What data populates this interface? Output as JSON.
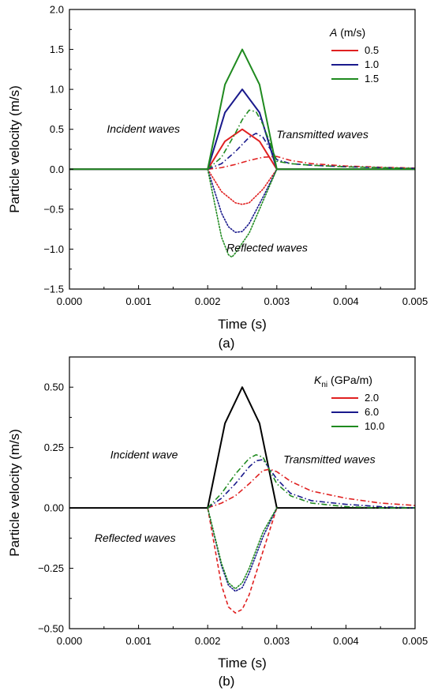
{
  "chart_data": [
    {
      "type": "line",
      "panel_label": "(a)",
      "xlabel": "Time (s)",
      "ylabel": "Particle velocity (m/s)",
      "xlim": [
        0.0,
        0.005
      ],
      "ylim": [
        -1.5,
        2.0
      ],
      "xticks": [
        0.0,
        0.001,
        0.002,
        0.003,
        0.004,
        0.005
      ],
      "xtick_labels": [
        "0.000",
        "0.001",
        "0.002",
        "0.003",
        "0.004",
        "0.005"
      ],
      "yticks": [
        -1.5,
        -1.0,
        -0.5,
        0.0,
        0.5,
        1.0,
        1.5,
        2.0
      ],
      "ytick_labels": [
        "−1.5",
        "−1.0",
        "−0.5",
        "0.0",
        "0.5",
        "1.0",
        "1.5",
        "2.0"
      ],
      "legend": {
        "placement": "top-right",
        "title_symbol": "A",
        "title_unit": " (m/s)",
        "entries": [
          {
            "label": "0.5",
            "color": "#e02020"
          },
          {
            "label": "1.0",
            "color": "#1a1a8c"
          },
          {
            "label": "1.5",
            "color": "#1f8a1f"
          }
        ]
      },
      "annotations": [
        {
          "text": "Incident waves",
          "x": 0.00107,
          "y": 0.46
        },
        {
          "text": "Transmitted waves",
          "x": 0.00366,
          "y": 0.39
        },
        {
          "text": "Reflected waves",
          "x": 0.00286,
          "y": -1.03
        }
      ],
      "series": [
        {
          "kind": "incident",
          "style": "solid",
          "color": "#e02020",
          "x": [
            0.0,
            0.002,
            0.00225,
            0.0025,
            0.00275,
            0.003,
            0.005
          ],
          "y": [
            0.0,
            0.0,
            0.35,
            0.5,
            0.35,
            0.0,
            0.0
          ]
        },
        {
          "kind": "incident",
          "style": "solid",
          "color": "#1a1a8c",
          "x": [
            0.0,
            0.002,
            0.00225,
            0.0025,
            0.00275,
            0.003,
            0.005
          ],
          "y": [
            0.0,
            0.0,
            0.71,
            1.0,
            0.71,
            0.0,
            0.0
          ]
        },
        {
          "kind": "incident",
          "style": "solid",
          "color": "#1f8a1f",
          "x": [
            0.0,
            0.002,
            0.00225,
            0.0025,
            0.00275,
            0.003,
            0.005
          ],
          "y": [
            0.0,
            0.0,
            1.06,
            1.5,
            1.06,
            0.0,
            0.0
          ]
        },
        {
          "kind": "transmitted",
          "style": "dashdot",
          "color": "#e02020",
          "x": [
            0.002,
            0.0022,
            0.0024,
            0.0026,
            0.0028,
            0.003,
            0.0032,
            0.0035,
            0.004,
            0.0045,
            0.005
          ],
          "y": [
            0.0,
            0.02,
            0.06,
            0.11,
            0.15,
            0.16,
            0.11,
            0.07,
            0.04,
            0.025,
            0.015
          ]
        },
        {
          "kind": "transmitted",
          "style": "dashdot",
          "color": "#1a1a8c",
          "x": [
            0.002,
            0.0022,
            0.0024,
            0.0026,
            0.0027,
            0.0028,
            0.003,
            0.0032,
            0.0035,
            0.004,
            0.0045,
            0.005
          ],
          "y": [
            0.0,
            0.07,
            0.22,
            0.4,
            0.45,
            0.4,
            0.12,
            0.07,
            0.05,
            0.03,
            0.02,
            0.01
          ]
        },
        {
          "kind": "transmitted",
          "style": "dashdot",
          "color": "#1f8a1f",
          "x": [
            0.002,
            0.0022,
            0.0024,
            0.0025,
            0.0026,
            0.0027,
            0.0028,
            0.003,
            0.0032,
            0.0035,
            0.004,
            0.0045,
            0.005
          ],
          "y": [
            0.0,
            0.15,
            0.45,
            0.62,
            0.74,
            0.72,
            0.56,
            0.1,
            0.07,
            0.05,
            0.03,
            0.02,
            0.01
          ]
        },
        {
          "kind": "reflected",
          "style": "dotted",
          "color": "#e02020",
          "x": [
            0.002,
            0.0022,
            0.0024,
            0.0025,
            0.0026,
            0.0028,
            0.003
          ],
          "y": [
            0.0,
            -0.28,
            -0.42,
            -0.44,
            -0.42,
            -0.25,
            0.0
          ]
        },
        {
          "kind": "reflected",
          "style": "dotted",
          "color": "#1a1a8c",
          "x": [
            0.002,
            0.0022,
            0.0023,
            0.0024,
            0.0025,
            0.0026,
            0.0028,
            0.003
          ],
          "y": [
            0.0,
            -0.55,
            -0.72,
            -0.79,
            -0.78,
            -0.68,
            -0.35,
            0.0
          ]
        },
        {
          "kind": "reflected",
          "style": "dotted",
          "color": "#1f8a1f",
          "x": [
            0.002,
            0.0022,
            0.0023,
            0.00235,
            0.0024,
            0.0026,
            0.0028,
            0.003
          ],
          "y": [
            0.0,
            -0.85,
            -1.07,
            -1.1,
            -1.05,
            -0.8,
            -0.4,
            0.0
          ]
        }
      ]
    },
    {
      "type": "line",
      "panel_label": "(b)",
      "xlabel": "Time (s)",
      "ylabel": "Particle velocity (m/s)",
      "xlim": [
        0.0,
        0.005
      ],
      "ylim": [
        -0.5,
        0.625
      ],
      "xticks": [
        0.0,
        0.001,
        0.002,
        0.003,
        0.004,
        0.005
      ],
      "xtick_labels": [
        "0.000",
        "0.001",
        "0.002",
        "0.003",
        "0.004",
        "0.005"
      ],
      "yticks": [
        -0.5,
        -0.25,
        0.0,
        0.25,
        0.5
      ],
      "ytick_labels": [
        "−0.50",
        "−0.25",
        "0.00",
        "0.25",
        "0.50"
      ],
      "legend": {
        "placement": "top-right",
        "title_symbol": "K",
        "title_subscript": "ni",
        "title_unit": " (GPa/m)",
        "entries": [
          {
            "label": "2.0",
            "color": "#e02020"
          },
          {
            "label": "6.0",
            "color": "#1a1a8c"
          },
          {
            "label": "10.0",
            "color": "#1f8a1f"
          }
        ]
      },
      "annotations": [
        {
          "text": "Incident wave",
          "x": 0.00108,
          "y": 0.205
        },
        {
          "text": "Transmitted waves",
          "x": 0.00376,
          "y": 0.185
        },
        {
          "text": "Reflected waves",
          "x": 0.00095,
          "y": -0.14
        }
      ],
      "series": [
        {
          "kind": "incident",
          "style": "solid",
          "color": "#000000",
          "x": [
            0.0,
            0.002,
            0.00225,
            0.0025,
            0.00275,
            0.003,
            0.005
          ],
          "y": [
            0.0,
            0.0,
            0.35,
            0.5,
            0.35,
            0.0,
            0.0
          ]
        },
        {
          "kind": "transmitted",
          "style": "dashdot",
          "color": "#e02020",
          "x": [
            0.002,
            0.0022,
            0.0024,
            0.0026,
            0.0028,
            0.0029,
            0.003,
            0.0032,
            0.0035,
            0.004,
            0.0045,
            0.005
          ],
          "y": [
            0.0,
            0.02,
            0.05,
            0.1,
            0.155,
            0.16,
            0.15,
            0.11,
            0.07,
            0.04,
            0.02,
            0.01
          ]
        },
        {
          "kind": "transmitted",
          "style": "dashdot",
          "color": "#1a1a8c",
          "x": [
            0.002,
            0.0022,
            0.0024,
            0.0026,
            0.0027,
            0.0028,
            0.003,
            0.0032,
            0.0035,
            0.004,
            0.0045,
            0.005
          ],
          "y": [
            0.0,
            0.04,
            0.1,
            0.17,
            0.195,
            0.2,
            0.12,
            0.06,
            0.03,
            0.015,
            0.005,
            0.0
          ]
        },
        {
          "kind": "transmitted",
          "style": "dashdot",
          "color": "#1f8a1f",
          "x": [
            0.002,
            0.0022,
            0.0024,
            0.0026,
            0.0027,
            0.0028,
            0.003,
            0.0032,
            0.0035,
            0.004,
            0.0045,
            0.005
          ],
          "y": [
            0.0,
            0.06,
            0.14,
            0.205,
            0.22,
            0.21,
            0.1,
            0.05,
            0.02,
            0.005,
            0.0,
            0.0
          ]
        },
        {
          "kind": "reflected",
          "style": "dashed",
          "color": "#e02020",
          "x": [
            0.002,
            0.0022,
            0.0023,
            0.0024,
            0.0025,
            0.0026,
            0.0028,
            0.003
          ],
          "y": [
            0.0,
            -0.32,
            -0.41,
            -0.435,
            -0.42,
            -0.36,
            -0.18,
            0.0
          ]
        },
        {
          "kind": "reflected",
          "style": "dotted",
          "color": "#1a1a8c",
          "x": [
            0.002,
            0.0022,
            0.0023,
            0.0024,
            0.0025,
            0.0026,
            0.0028,
            0.003
          ],
          "y": [
            0.0,
            -0.24,
            -0.32,
            -0.345,
            -0.33,
            -0.27,
            -0.12,
            0.0
          ]
        },
        {
          "kind": "reflected",
          "style": "dotted",
          "color": "#1f8a1f",
          "x": [
            0.002,
            0.0022,
            0.0023,
            0.0024,
            0.0025,
            0.0026,
            0.0028,
            0.003
          ],
          "y": [
            0.0,
            -0.23,
            -0.31,
            -0.335,
            -0.31,
            -0.25,
            -0.1,
            0.0
          ]
        }
      ]
    }
  ]
}
